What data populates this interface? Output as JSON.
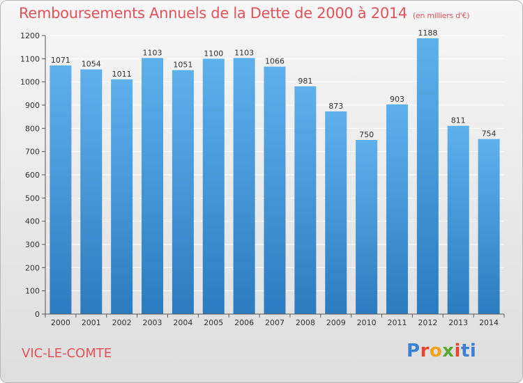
{
  "title": {
    "main": "Remboursements Annuels de la Dette de 2000 à 2014",
    "sub": "(en milliers d'€)"
  },
  "city": "VIC-LE-COMTE",
  "logo": {
    "text": "Proxiti",
    "letters": [
      "P",
      "r",
      "o",
      "x",
      "i",
      "t",
      "i"
    ]
  },
  "colors": {
    "bar_top": "#5eb1ec",
    "bar_bottom": "#2b7cc0",
    "title": "#e2525a",
    "grid": "#ffffff"
  },
  "chart_data": {
    "type": "bar",
    "title": "Remboursements Annuels de la Dette de 2000 à 2014",
    "subtitle": "(en milliers d'€)",
    "xlabel": "",
    "ylabel": "",
    "categories": [
      "2000",
      "2001",
      "2002",
      "2003",
      "2004",
      "2005",
      "2006",
      "2007",
      "2008",
      "2009",
      "2010",
      "2011",
      "2012",
      "2013",
      "2014"
    ],
    "values": [
      1071,
      1054,
      1011,
      1103,
      1051,
      1100,
      1103,
      1066,
      981,
      873,
      750,
      903,
      1188,
      811,
      754
    ],
    "ylim": [
      0,
      1200
    ],
    "yticks": [
      0,
      100,
      200,
      300,
      400,
      500,
      600,
      700,
      800,
      900,
      1000,
      1100,
      1200
    ],
    "grid": true,
    "data_labels": true
  }
}
